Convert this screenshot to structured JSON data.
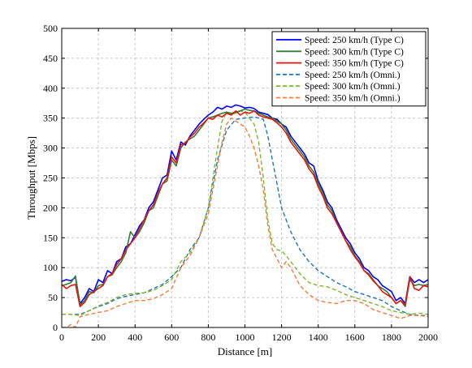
{
  "chart_data": {
    "type": "line",
    "xlabel": "Distance [m]",
    "ylabel": "Throughput [Mbps]",
    "xlim": [
      0,
      2000
    ],
    "ylim": [
      0,
      500
    ],
    "xticks": [
      0,
      200,
      400,
      600,
      800,
      1000,
      1200,
      1400,
      1600,
      1800,
      2000
    ],
    "yticks": [
      0,
      50,
      100,
      150,
      200,
      250,
      300,
      350,
      400,
      450,
      500
    ],
    "grid": true,
    "legend_position": "top-right",
    "series": [
      {
        "name": "Speed: 250 km/h (Type C)",
        "color": "#0000ff",
        "dash": "solid",
        "x": [
          0,
          25,
          50,
          75,
          100,
          125,
          150,
          175,
          200,
          225,
          250,
          275,
          300,
          325,
          350,
          375,
          400,
          425,
          450,
          475,
          500,
          525,
          550,
          575,
          600,
          625,
          650,
          675,
          700,
          725,
          750,
          775,
          800,
          825,
          850,
          875,
          900,
          925,
          950,
          975,
          1000,
          1025,
          1050,
          1075,
          1100,
          1125,
          1150,
          1175,
          1200,
          1225,
          1250,
          1275,
          1300,
          1325,
          1350,
          1375,
          1400,
          1425,
          1450,
          1475,
          1500,
          1525,
          1550,
          1575,
          1600,
          1625,
          1650,
          1675,
          1700,
          1725,
          1750,
          1775,
          1800,
          1825,
          1850,
          1875,
          1900,
          1925,
          1950,
          1975,
          2000
        ],
        "y": [
          77,
          80,
          78,
          84,
          40,
          50,
          65,
          60,
          80,
          75,
          95,
          90,
          110,
          115,
          135,
          140,
          155,
          170,
          180,
          200,
          210,
          230,
          250,
          255,
          295,
          280,
          310,
          305,
          320,
          330,
          340,
          348,
          355,
          360,
          368,
          365,
          370,
          368,
          372,
          370,
          367,
          368,
          366,
          360,
          358,
          356,
          350,
          348,
          340,
          335,
          320,
          310,
          300,
          290,
          275,
          270,
          245,
          230,
          210,
          200,
          180,
          165,
          150,
          140,
          125,
          115,
          100,
          95,
          85,
          80,
          70,
          65,
          60,
          45,
          50,
          40,
          85,
          75,
          80,
          75,
          80
        ]
      },
      {
        "name": "Speed: 300 km/h (Type C)",
        "color": "#2e7d32",
        "dash": "solid",
        "x": [
          0,
          25,
          50,
          75,
          100,
          125,
          150,
          175,
          200,
          225,
          250,
          275,
          300,
          325,
          350,
          375,
          400,
          425,
          450,
          475,
          500,
          525,
          550,
          575,
          600,
          625,
          650,
          675,
          700,
          725,
          750,
          775,
          800,
          825,
          850,
          875,
          900,
          925,
          950,
          975,
          1000,
          1025,
          1050,
          1075,
          1100,
          1125,
          1150,
          1175,
          1200,
          1225,
          1250,
          1275,
          1300,
          1325,
          1350,
          1375,
          1400,
          1425,
          1450,
          1475,
          1500,
          1525,
          1550,
          1575,
          1600,
          1625,
          1650,
          1675,
          1700,
          1725,
          1750,
          1775,
          1800,
          1825,
          1850,
          1875,
          1900,
          1925,
          1950,
          1975,
          2000
        ],
        "y": [
          70,
          72,
          75,
          86,
          38,
          45,
          60,
          58,
          70,
          72,
          85,
          88,
          100,
          110,
          125,
          160,
          150,
          160,
          175,
          195,
          200,
          220,
          240,
          245,
          280,
          270,
          300,
          310,
          315,
          320,
          330,
          340,
          350,
          352,
          355,
          358,
          360,
          358,
          360,
          362,
          365,
          363,
          362,
          358,
          355,
          352,
          350,
          345,
          340,
          330,
          315,
          305,
          295,
          285,
          270,
          260,
          240,
          225,
          205,
          195,
          175,
          160,
          145,
          135,
          120,
          110,
          95,
          90,
          80,
          70,
          65,
          60,
          50,
          40,
          45,
          35,
          80,
          70,
          72,
          70,
          72
        ]
      },
      {
        "name": "Speed: 350 km/h (Type C)",
        "color": "#e8140f",
        "dash": "solid",
        "x": [
          0,
          25,
          50,
          75,
          100,
          125,
          150,
          175,
          200,
          225,
          250,
          275,
          300,
          325,
          350,
          375,
          400,
          425,
          450,
          475,
          500,
          525,
          550,
          575,
          600,
          625,
          650,
          675,
          700,
          725,
          750,
          775,
          800,
          825,
          850,
          875,
          900,
          925,
          950,
          975,
          1000,
          1025,
          1050,
          1075,
          1100,
          1125,
          1150,
          1175,
          1200,
          1225,
          1250,
          1275,
          1300,
          1325,
          1350,
          1375,
          1400,
          1425,
          1450,
          1475,
          1500,
          1525,
          1550,
          1575,
          1600,
          1625,
          1650,
          1675,
          1700,
          1725,
          1750,
          1775,
          1800,
          1825,
          1850,
          1875,
          1900,
          1925,
          1950,
          1975,
          2000
        ],
        "y": [
          72,
          65,
          70,
          72,
          35,
          42,
          55,
          60,
          65,
          70,
          85,
          90,
          105,
          115,
          130,
          140,
          150,
          165,
          180,
          195,
          205,
          225,
          240,
          250,
          285,
          275,
          305,
          308,
          318,
          325,
          335,
          342,
          350,
          348,
          355,
          352,
          358,
          355,
          362,
          355,
          360,
          358,
          362,
          355,
          352,
          350,
          348,
          342,
          335,
          325,
          310,
          300,
          290,
          280,
          265,
          255,
          235,
          220,
          200,
          190,
          175,
          160,
          145,
          130,
          118,
          108,
          95,
          88,
          78,
          70,
          60,
          55,
          50,
          40,
          45,
          38,
          85,
          65,
          62,
          70,
          68
        ]
      },
      {
        "name": "Speed: 250 km/h (Omni.)",
        "color": "#1f77b4",
        "dash": "dashed",
        "x": [
          0,
          50,
          100,
          150,
          200,
          250,
          300,
          350,
          400,
          450,
          500,
          550,
          600,
          650,
          700,
          750,
          800,
          850,
          900,
          950,
          1000,
          1050,
          1100,
          1125,
          1150,
          1175,
          1200,
          1250,
          1300,
          1350,
          1400,
          1450,
          1500,
          1550,
          1600,
          1650,
          1700,
          1750,
          1800,
          1850,
          1900,
          1950,
          2000
        ],
        "y": [
          22,
          22,
          22,
          28,
          35,
          40,
          48,
          52,
          55,
          58,
          65,
          72,
          85,
          100,
          130,
          150,
          200,
          280,
          330,
          348,
          350,
          352,
          348,
          320,
          280,
          240,
          200,
          160,
          130,
          110,
          95,
          85,
          75,
          68,
          60,
          55,
          50,
          45,
          35,
          28,
          22,
          20,
          20
        ]
      },
      {
        "name": "Speed: 300 km/h (Omni.)",
        "color": "#7cb82f",
        "dash": "dashed",
        "x": [
          0,
          50,
          100,
          150,
          200,
          250,
          300,
          350,
          400,
          450,
          500,
          550,
          600,
          650,
          700,
          750,
          800,
          850,
          875,
          900,
          925,
          950,
          975,
          1000,
          1025,
          1050,
          1075,
          1100,
          1125,
          1150,
          1175,
          1200,
          1225,
          1250,
          1300,
          1350,
          1400,
          1450,
          1500,
          1550,
          1600,
          1650,
          1700,
          1750,
          1800,
          1850,
          1900,
          1950,
          2000
        ],
        "y": [
          22,
          22,
          20,
          28,
          36,
          42,
          50,
          55,
          57,
          58,
          62,
          70,
          80,
          110,
          125,
          150,
          200,
          300,
          345,
          360,
          356,
          358,
          362,
          360,
          350,
          340,
          310,
          250,
          180,
          140,
          130,
          128,
          120,
          110,
          90,
          75,
          70,
          68,
          62,
          55,
          50,
          45,
          40,
          35,
          28,
          25,
          22,
          24,
          22
        ]
      },
      {
        "name": "Speed: 350 km/h (Omni.)",
        "color": "#f07c3c",
        "dash": "dashed",
        "x": [
          0,
          25,
          50,
          75,
          100,
          150,
          200,
          250,
          300,
          350,
          400,
          450,
          500,
          550,
          600,
          650,
          700,
          750,
          800,
          850,
          875,
          900,
          925,
          950,
          975,
          1000,
          1025,
          1050,
          1075,
          1100,
          1125,
          1150,
          1175,
          1200,
          1225,
          1250,
          1300,
          1350,
          1400,
          1450,
          1500,
          1550,
          1600,
          1650,
          1700,
          1750,
          1800,
          1850,
          1900,
          1950,
          2000
        ],
        "y": [
          0,
          0,
          5,
          0,
          18,
          22,
          25,
          28,
          35,
          40,
          45,
          45,
          48,
          55,
          65,
          100,
          120,
          150,
          190,
          270,
          310,
          340,
          350,
          345,
          340,
          335,
          320,
          300,
          270,
          230,
          170,
          130,
          115,
          100,
          110,
          100,
          70,
          55,
          45,
          42,
          40,
          45,
          45,
          40,
          30,
          25,
          20,
          15,
          20,
          20,
          18
        ]
      }
    ]
  }
}
